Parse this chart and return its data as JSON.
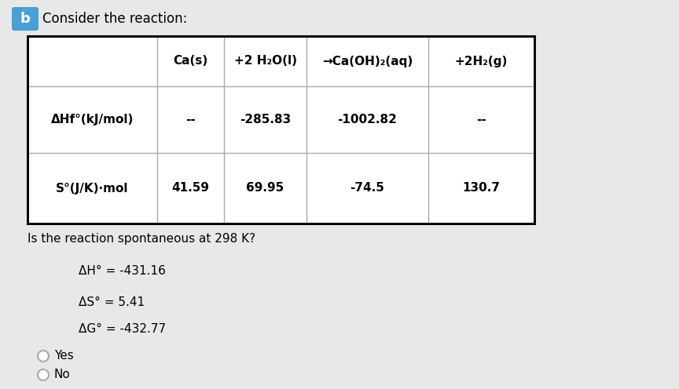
{
  "background_color": "#e8e8e8",
  "title_b_color": "#4a9fd4",
  "title_text": "Consider the reaction:",
  "table_headers": [
    "",
    "Ca(s)",
    "+2 H₂O(l)",
    "→Ca(OH)₂(aq)",
    "+2H₂(g)"
  ],
  "row1_label": "ΔHf°(kJ/mol)",
  "row1_values": [
    "--",
    "-285.83",
    "-1002.82",
    "--"
  ],
  "row2_label": "S°(J/K)·mol",
  "row2_values": [
    "41.59",
    "69.95",
    "-74.5",
    "130.7"
  ],
  "question": "Is the reaction spontaneous at 298 K?",
  "delta_h": "ΔH° = -431.16",
  "delta_s": "ΔS° = 5.41",
  "delta_g": "ΔG° = -432.77",
  "option_yes": "Yes",
  "option_no": "No",
  "font_size_title": 12,
  "font_size_table_header": 11,
  "font_size_table_data": 11,
  "font_size_question": 11,
  "font_size_results": 11,
  "font_size_options": 11
}
